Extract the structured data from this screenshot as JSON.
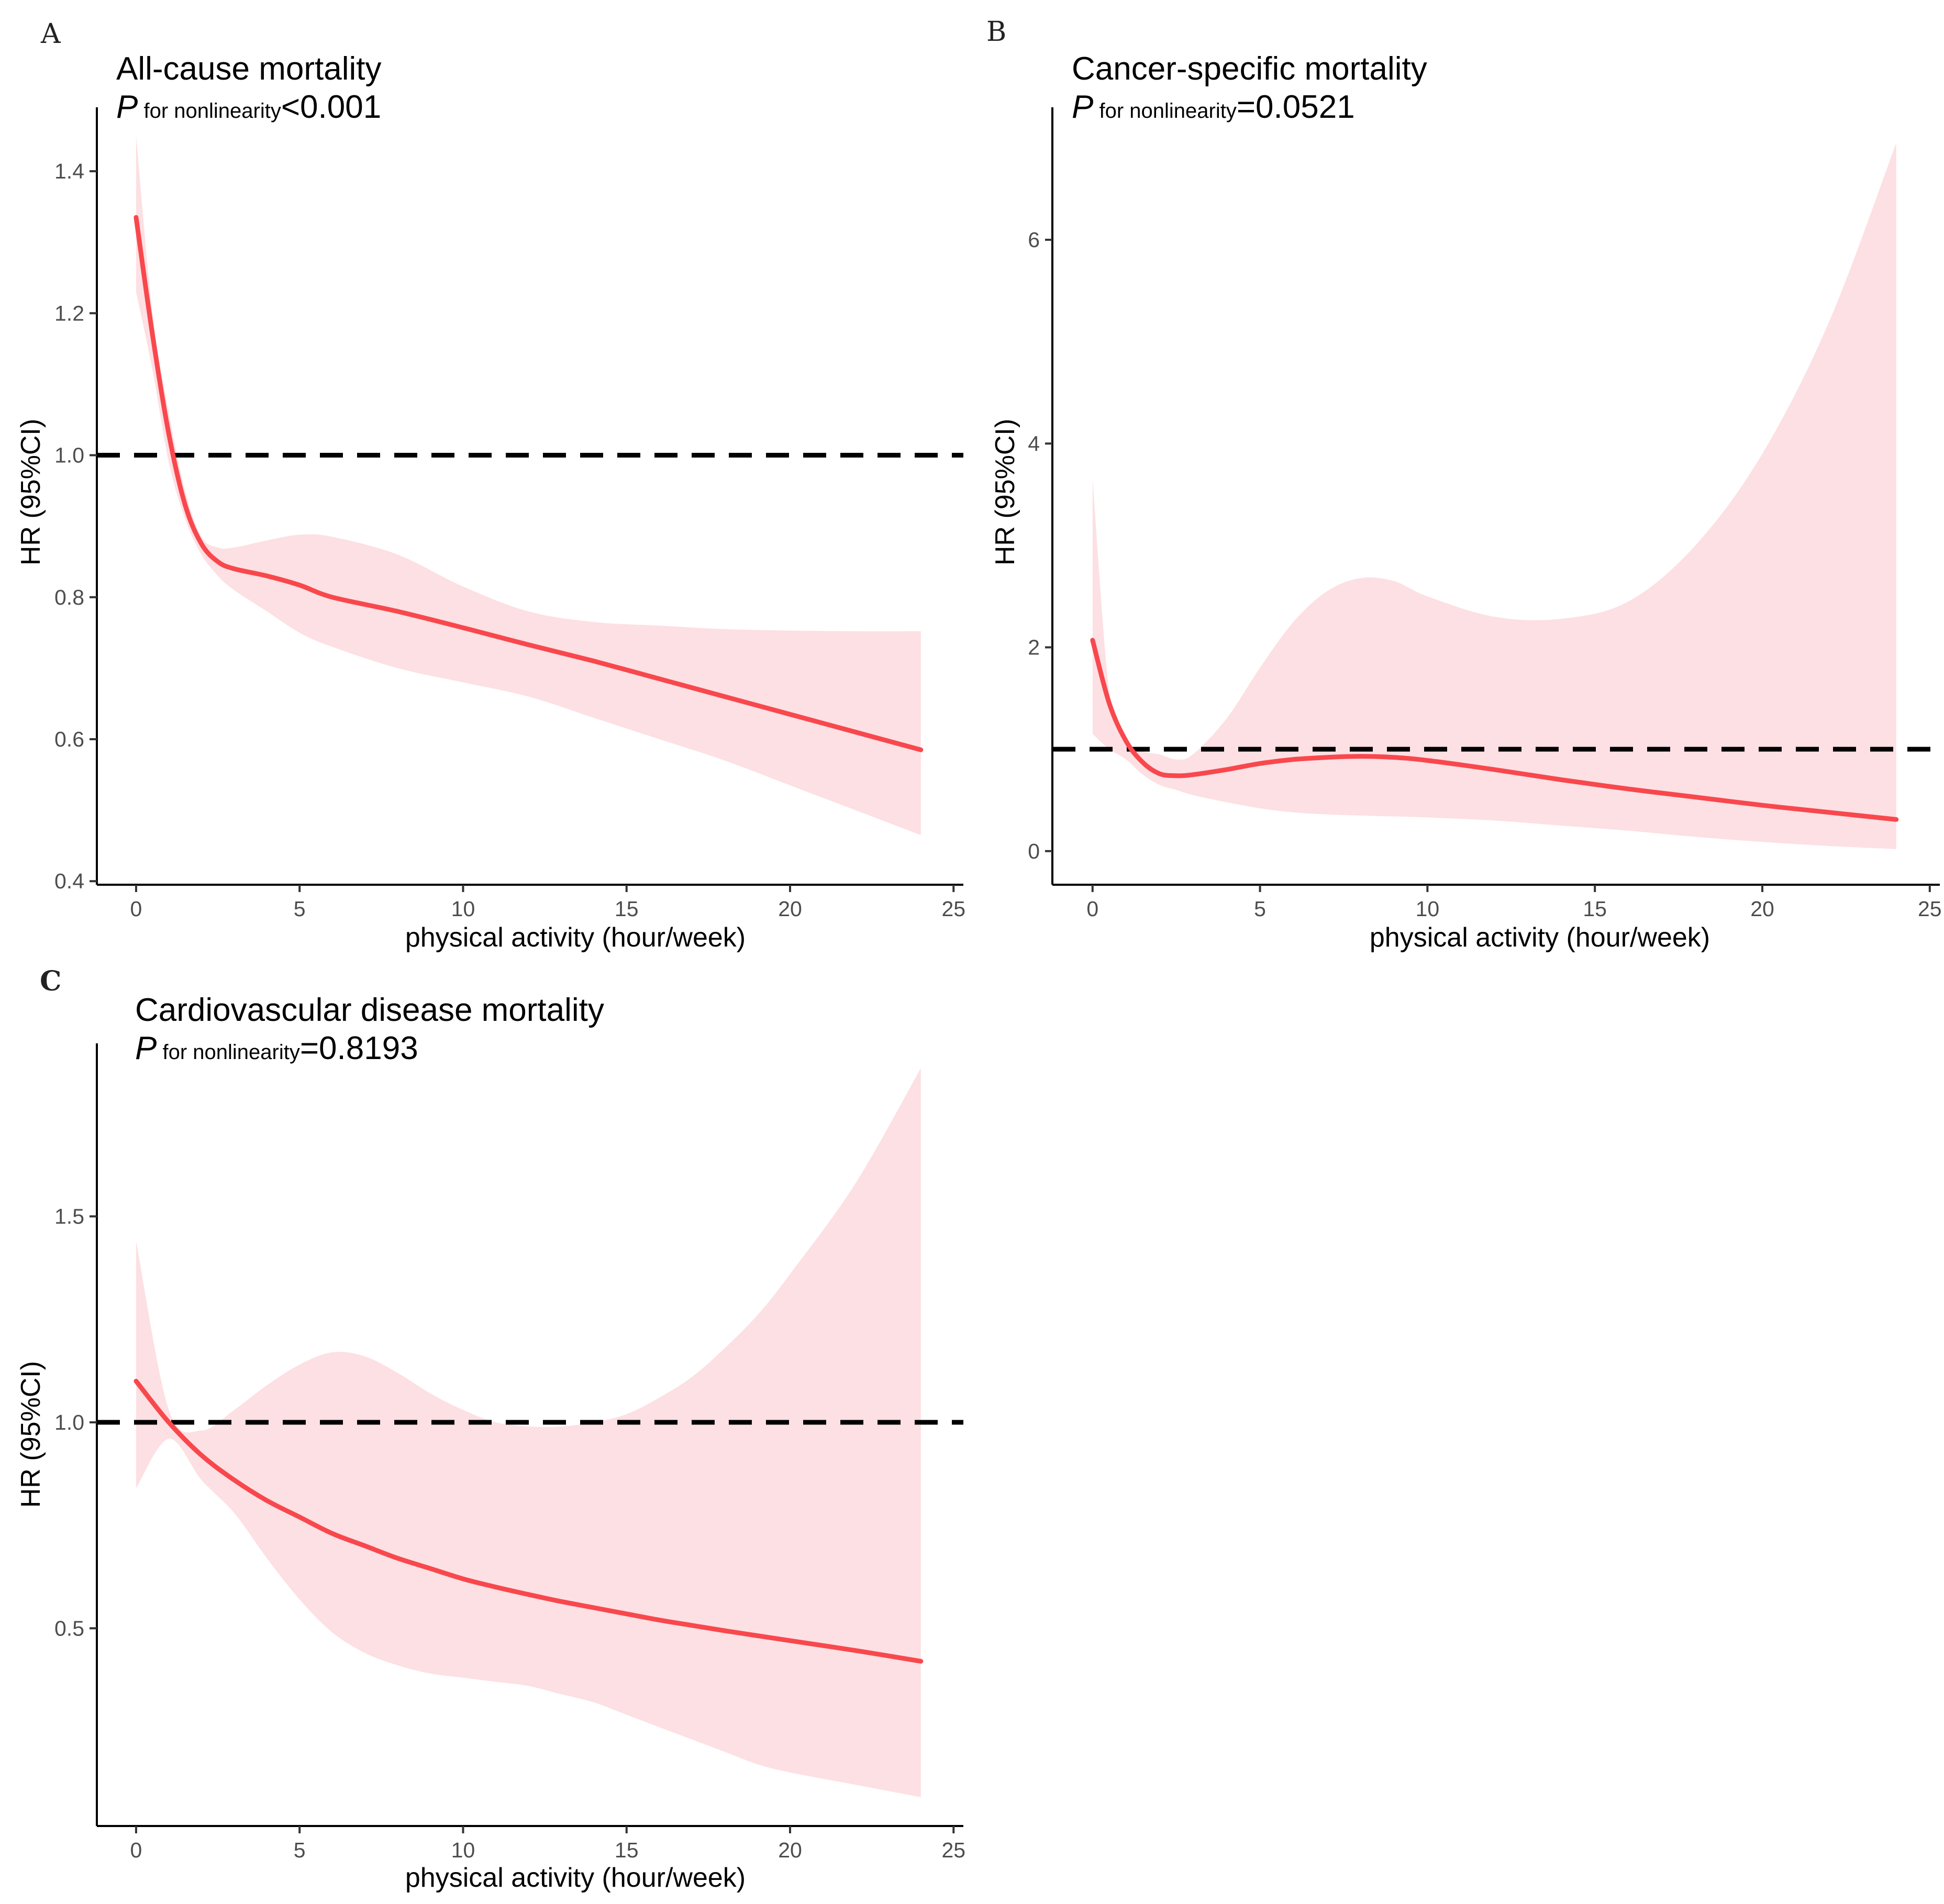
{
  "colors": {
    "curve": "#f8484d",
    "band": "#fde0e3",
    "reference": "#000000"
  },
  "chart_data": [
    {
      "panel_letter": "A",
      "type": "line",
      "title": "All-cause mortality",
      "p_label": {
        "p": "P",
        "sub": " for nonlinearity",
        "value": "<0.001"
      },
      "xlabel": "physical activity (hour/week)",
      "ylabel": "HR (95%CI)",
      "xlim": [
        -1.2,
        25.3
      ],
      "ylim": [
        0.395,
        1.49
      ],
      "xticks": [
        0,
        5,
        10,
        15,
        20,
        25
      ],
      "yticks": [
        0.4,
        0.6,
        0.8,
        1.0,
        1.2,
        1.4
      ],
      "ytick_labels": [
        "0.4",
        "0.6",
        "0.8",
        "1.0",
        "1.2",
        "1.4"
      ],
      "reference_y": 1.0,
      "x": [
        0,
        0.5,
        1,
        1.5,
        2,
        2.5,
        3,
        4,
        5,
        6,
        8,
        10,
        12,
        14,
        16,
        18,
        20,
        22,
        24
      ],
      "hr": [
        1.335,
        1.17,
        1.03,
        0.93,
        0.875,
        0.85,
        0.84,
        0.83,
        0.817,
        0.8,
        0.78,
        0.757,
        0.733,
        0.71,
        0.685,
        0.66,
        0.635,
        0.61,
        0.585
      ],
      "upper": [
        1.45,
        1.2,
        1.06,
        0.95,
        0.885,
        0.87,
        0.87,
        0.88,
        0.888,
        0.885,
        0.86,
        0.815,
        0.78,
        0.765,
        0.76,
        0.755,
        0.753,
        0.752,
        0.752
      ],
      "lower": [
        1.23,
        1.12,
        0.99,
        0.91,
        0.86,
        0.83,
        0.81,
        0.78,
        0.75,
        0.73,
        0.7,
        0.68,
        0.66,
        0.63,
        0.6,
        0.57,
        0.535,
        0.5,
        0.465
      ]
    },
    {
      "panel_letter": "B",
      "type": "line",
      "title": "Cancer-specific mortality",
      "p_label": {
        "p": "P",
        "sub": " for nonlinearity",
        "value": "=0.0521"
      },
      "xlabel": "physical activity (hour/week)",
      "ylabel": "HR (95%CI)",
      "xlim": [
        -1.2,
        25.3
      ],
      "ylim": [
        -0.33,
        7.3
      ],
      "xticks": [
        0,
        5,
        10,
        15,
        20,
        25
      ],
      "yticks": [
        0,
        2,
        4,
        6
      ],
      "ytick_labels": [
        "0",
        "2",
        "4",
        "6"
      ],
      "reference_y": 1.0,
      "x": [
        0,
        0.5,
        1,
        1.5,
        2,
        2.5,
        3,
        4,
        5,
        6,
        7,
        8,
        9,
        10,
        12,
        14,
        16,
        18,
        20,
        22,
        24
      ],
      "hr": [
        2.07,
        1.45,
        1.08,
        0.87,
        0.76,
        0.74,
        0.75,
        0.8,
        0.86,
        0.9,
        0.92,
        0.93,
        0.92,
        0.89,
        0.8,
        0.7,
        0.61,
        0.53,
        0.45,
        0.38,
        0.31
      ],
      "upper": [
        3.65,
        1.55,
        1.1,
        0.98,
        0.95,
        0.9,
        0.95,
        1.3,
        1.8,
        2.25,
        2.55,
        2.68,
        2.65,
        2.5,
        2.3,
        2.28,
        2.45,
        3.0,
        3.9,
        5.2,
        6.95
      ],
      "lower": [
        1.15,
        1.0,
        0.9,
        0.75,
        0.65,
        0.6,
        0.55,
        0.48,
        0.42,
        0.38,
        0.36,
        0.35,
        0.34,
        0.33,
        0.3,
        0.25,
        0.2,
        0.14,
        0.09,
        0.05,
        0.02
      ]
    },
    {
      "panel_letter": "C",
      "type": "line",
      "title": "Cardiovascular disease mortality",
      "p_label": {
        "p": "P",
        "sub": " for nonlinearity",
        "value": "=0.8193"
      },
      "xlabel": "physical activity (hour/week)",
      "ylabel": "HR (95%CI)",
      "xlim": [
        -1.2,
        25.3
      ],
      "ylim": [
        0.02,
        1.92
      ],
      "xticks": [
        0,
        5,
        10,
        15,
        20,
        25
      ],
      "yticks": [
        0.5,
        1.0,
        1.5
      ],
      "ytick_labels": [
        "0.5",
        "1.0",
        "1.5"
      ],
      "reference_y": 1.0,
      "x": [
        0,
        1,
        2,
        3,
        4,
        5,
        6,
        7,
        8,
        9,
        10,
        11,
        12,
        13,
        14,
        15,
        16,
        17,
        18,
        19,
        20,
        22,
        24
      ],
      "hr": [
        1.1,
        1.0,
        0.92,
        0.86,
        0.81,
        0.77,
        0.73,
        0.7,
        0.67,
        0.645,
        0.62,
        0.6,
        0.582,
        0.565,
        0.55,
        0.535,
        0.52,
        0.507,
        0.494,
        0.482,
        0.47,
        0.446,
        0.42
      ],
      "upper": [
        1.44,
        1.03,
        0.98,
        1.03,
        1.09,
        1.14,
        1.17,
        1.16,
        1.12,
        1.07,
        1.03,
        1.0,
        0.99,
        0.99,
        1.0,
        1.02,
        1.06,
        1.11,
        1.18,
        1.26,
        1.36,
        1.58,
        1.86
      ],
      "lower": [
        0.84,
        0.96,
        0.86,
        0.78,
        0.67,
        0.57,
        0.49,
        0.44,
        0.41,
        0.39,
        0.38,
        0.37,
        0.36,
        0.34,
        0.32,
        0.29,
        0.26,
        0.23,
        0.2,
        0.17,
        0.15,
        0.12,
        0.09
      ]
    }
  ]
}
